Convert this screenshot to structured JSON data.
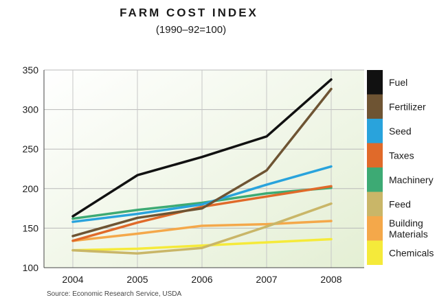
{
  "chart_data": {
    "type": "line",
    "title": "FARM COST INDEX",
    "subtitle": "(1990–92=100)",
    "x": [
      "2004",
      "2005",
      "2006",
      "2007",
      "2008"
    ],
    "ylim": [
      100,
      350
    ],
    "yticks": [
      100,
      150,
      200,
      250,
      300,
      350
    ],
    "grid": true,
    "legend_position": "right",
    "series": [
      {
        "name": "Fuel",
        "color": "#111111",
        "values": [
          165,
          217,
          240,
          266,
          338
        ]
      },
      {
        "name": "Fertilizer",
        "color": "#6e5433",
        "values": [
          140,
          163,
          175,
          223,
          326
        ]
      },
      {
        "name": "Seed",
        "color": "#29a3dc",
        "values": [
          158,
          168,
          180,
          205,
          228
        ]
      },
      {
        "name": "Taxes",
        "color": "#e06a2a",
        "values": [
          134,
          157,
          177,
          190,
          203
        ]
      },
      {
        "name": "Machinery",
        "color": "#3daa74",
        "values": [
          162,
          173,
          182,
          194,
          201
        ]
      },
      {
        "name": "Feed",
        "color": "#c9b668",
        "values": [
          122,
          118,
          125,
          152,
          181
        ]
      },
      {
        "name": "Building Materials",
        "color": "#f4a84a",
        "values": [
          134,
          143,
          153,
          155,
          159
        ]
      },
      {
        "name": "Chemicals",
        "color": "#f5ea3a",
        "values": [
          122,
          124,
          128,
          132,
          136
        ]
      }
    ],
    "source": "Source: Economic Research Service, USDA"
  }
}
